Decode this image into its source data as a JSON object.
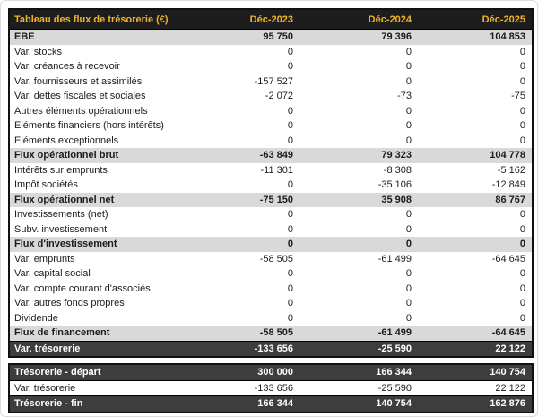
{
  "colors": {
    "header_bg": "#1d1d1d",
    "header_text": "#f0b32a",
    "band_row_bg": "#d9d9d9",
    "dark_row_bg": "#3d3d3d",
    "dark_row_text": "#ffffff",
    "body_text": "#1c1c1c",
    "table_border": "#111111"
  },
  "table": {
    "title": "Tableau des flux de trésorerie (€)",
    "columns": [
      "Déc-2023",
      "Déc-2024",
      "Déc-2025"
    ],
    "main_rows": [
      {
        "label": "EBE",
        "values": [
          "95 750",
          "79 396",
          "104 853"
        ],
        "style": "band"
      },
      {
        "label": "Var. stocks",
        "values": [
          "0",
          "0",
          "0"
        ],
        "style": "normal"
      },
      {
        "label": "Var. créances à recevoir",
        "values": [
          "0",
          "0",
          "0"
        ],
        "style": "normal"
      },
      {
        "label": "Var. fournisseurs et assimilés",
        "values": [
          "-157 527",
          "0",
          "0"
        ],
        "style": "normal"
      },
      {
        "label": "Var. dettes fiscales et sociales",
        "values": [
          "-2 072",
          "-73",
          "-75"
        ],
        "style": "normal"
      },
      {
        "label": "Autres éléments opérationnels",
        "values": [
          "0",
          "0",
          "0"
        ],
        "style": "normal"
      },
      {
        "label": "Eléments financiers (hors intérêts)",
        "values": [
          "0",
          "0",
          "0"
        ],
        "style": "normal"
      },
      {
        "label": "Eléments exceptionnels",
        "values": [
          "0",
          "0",
          "0"
        ],
        "style": "normal"
      },
      {
        "label": "Flux opérationnel brut",
        "values": [
          "-63 849",
          "79 323",
          "104 778"
        ],
        "style": "band"
      },
      {
        "label": "Intérêts sur emprunts",
        "values": [
          "-11 301",
          "-8 308",
          "-5 162"
        ],
        "style": "normal"
      },
      {
        "label": "Impôt sociétés",
        "values": [
          "0",
          "-35 106",
          "-12 849"
        ],
        "style": "normal"
      },
      {
        "label": "Flux opérationnel net",
        "values": [
          "-75 150",
          "35 908",
          "86 767"
        ],
        "style": "band"
      },
      {
        "label": "Investissements (net)",
        "values": [
          "0",
          "0",
          "0"
        ],
        "style": "normal"
      },
      {
        "label": "Subv. investissement",
        "values": [
          "0",
          "0",
          "0"
        ],
        "style": "normal"
      },
      {
        "label": "Flux d'investissement",
        "values": [
          "0",
          "0",
          "0"
        ],
        "style": "band"
      },
      {
        "label": "Var. emprunts",
        "values": [
          "-58 505",
          "-61 499",
          "-64 645"
        ],
        "style": "normal"
      },
      {
        "label": "Var. capital social",
        "values": [
          "0",
          "0",
          "0"
        ],
        "style": "normal"
      },
      {
        "label": "Var. compte courant d'associés",
        "values": [
          "0",
          "0",
          "0"
        ],
        "style": "normal"
      },
      {
        "label": "Var. autres fonds propres",
        "values": [
          "0",
          "0",
          "0"
        ],
        "style": "normal"
      },
      {
        "label": "Dividende",
        "values": [
          "0",
          "0",
          "0"
        ],
        "style": "normal"
      },
      {
        "label": "Flux de financement",
        "values": [
          "-58 505",
          "-61 499",
          "-64 645"
        ],
        "style": "band"
      },
      {
        "label": "Var. trésorerie",
        "values": [
          "-133 656",
          "-25 590",
          "22 122"
        ],
        "style": "dark"
      }
    ],
    "summary_rows": [
      {
        "label": "Trésorerie - départ",
        "values": [
          "300 000",
          "166 344",
          "140 754"
        ],
        "style": "dark"
      },
      {
        "label": "Var. trésorerie",
        "values": [
          "-133 656",
          "-25 590",
          "22 122"
        ],
        "style": "normal"
      },
      {
        "label": "Trésorerie - fin",
        "values": [
          "166 344",
          "140 754",
          "162 876"
        ],
        "style": "dark"
      }
    ]
  },
  "chart_data": {
    "type": "table",
    "title": "Tableau des flux de trésorerie (€)",
    "columns": [
      "Déc-2023",
      "Déc-2024",
      "Déc-2025"
    ],
    "rows": [
      {
        "name": "EBE",
        "values": [
          95750,
          79396,
          104853
        ]
      },
      {
        "name": "Var. stocks",
        "values": [
          0,
          0,
          0
        ]
      },
      {
        "name": "Var. créances à recevoir",
        "values": [
          0,
          0,
          0
        ]
      },
      {
        "name": "Var. fournisseurs et assimilés",
        "values": [
          -157527,
          0,
          0
        ]
      },
      {
        "name": "Var. dettes fiscales et sociales",
        "values": [
          -2072,
          -73,
          -75
        ]
      },
      {
        "name": "Autres éléments opérationnels",
        "values": [
          0,
          0,
          0
        ]
      },
      {
        "name": "Eléments financiers (hors intérêts)",
        "values": [
          0,
          0,
          0
        ]
      },
      {
        "name": "Eléments exceptionnels",
        "values": [
          0,
          0,
          0
        ]
      },
      {
        "name": "Flux opérationnel brut",
        "values": [
          -63849,
          79323,
          104778
        ]
      },
      {
        "name": "Intérêts sur emprunts",
        "values": [
          -11301,
          -8308,
          -5162
        ]
      },
      {
        "name": "Impôt sociétés",
        "values": [
          0,
          -35106,
          -12849
        ]
      },
      {
        "name": "Flux opérationnel net",
        "values": [
          -75150,
          35908,
          86767
        ]
      },
      {
        "name": "Investissements (net)",
        "values": [
          0,
          0,
          0
        ]
      },
      {
        "name": "Subv. investissement",
        "values": [
          0,
          0,
          0
        ]
      },
      {
        "name": "Flux d'investissement",
        "values": [
          0,
          0,
          0
        ]
      },
      {
        "name": "Var. emprunts",
        "values": [
          -58505,
          -61499,
          -64645
        ]
      },
      {
        "name": "Var. capital social",
        "values": [
          0,
          0,
          0
        ]
      },
      {
        "name": "Var. compte courant d'associés",
        "values": [
          0,
          0,
          0
        ]
      },
      {
        "name": "Var. autres fonds propres",
        "values": [
          0,
          0,
          0
        ]
      },
      {
        "name": "Dividende",
        "values": [
          0,
          0,
          0
        ]
      },
      {
        "name": "Flux de financement",
        "values": [
          -58505,
          -61499,
          -64645
        ]
      },
      {
        "name": "Var. trésorerie",
        "values": [
          -133656,
          -25590,
          22122
        ]
      },
      {
        "name": "Trésorerie - départ",
        "values": [
          300000,
          166344,
          140754
        ]
      },
      {
        "name": "Var. trésorerie",
        "values": [
          -133656,
          -25590,
          22122
        ]
      },
      {
        "name": "Trésorerie - fin",
        "values": [
          166344,
          140754,
          162876
        ]
      }
    ]
  }
}
